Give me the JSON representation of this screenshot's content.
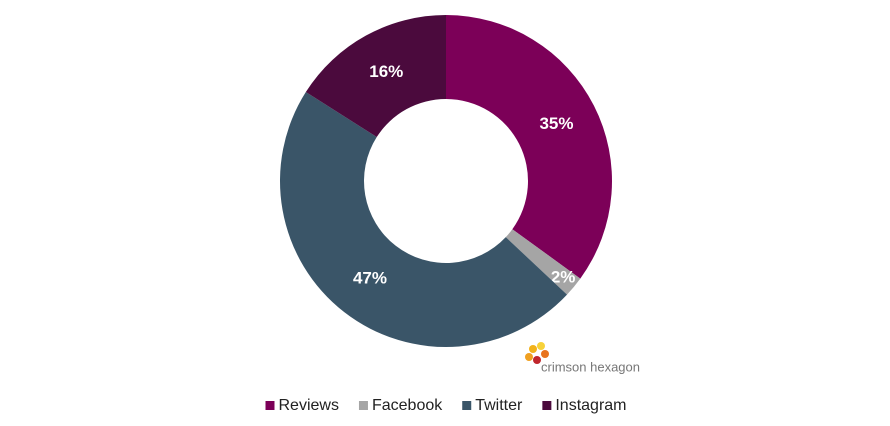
{
  "chart_data": {
    "type": "donut",
    "categories": [
      "Reviews",
      "Facebook",
      "Twitter",
      "Instagram"
    ],
    "values": [
      35,
      2,
      47,
      16
    ],
    "value_labels": [
      "35%",
      "2%",
      "47%",
      "16%"
    ],
    "colors": [
      "#7c0058",
      "#a5a5a5",
      "#3a5568",
      "#4b0a3d"
    ],
    "legend": "bottom",
    "watermark": "crimson hexagon"
  }
}
